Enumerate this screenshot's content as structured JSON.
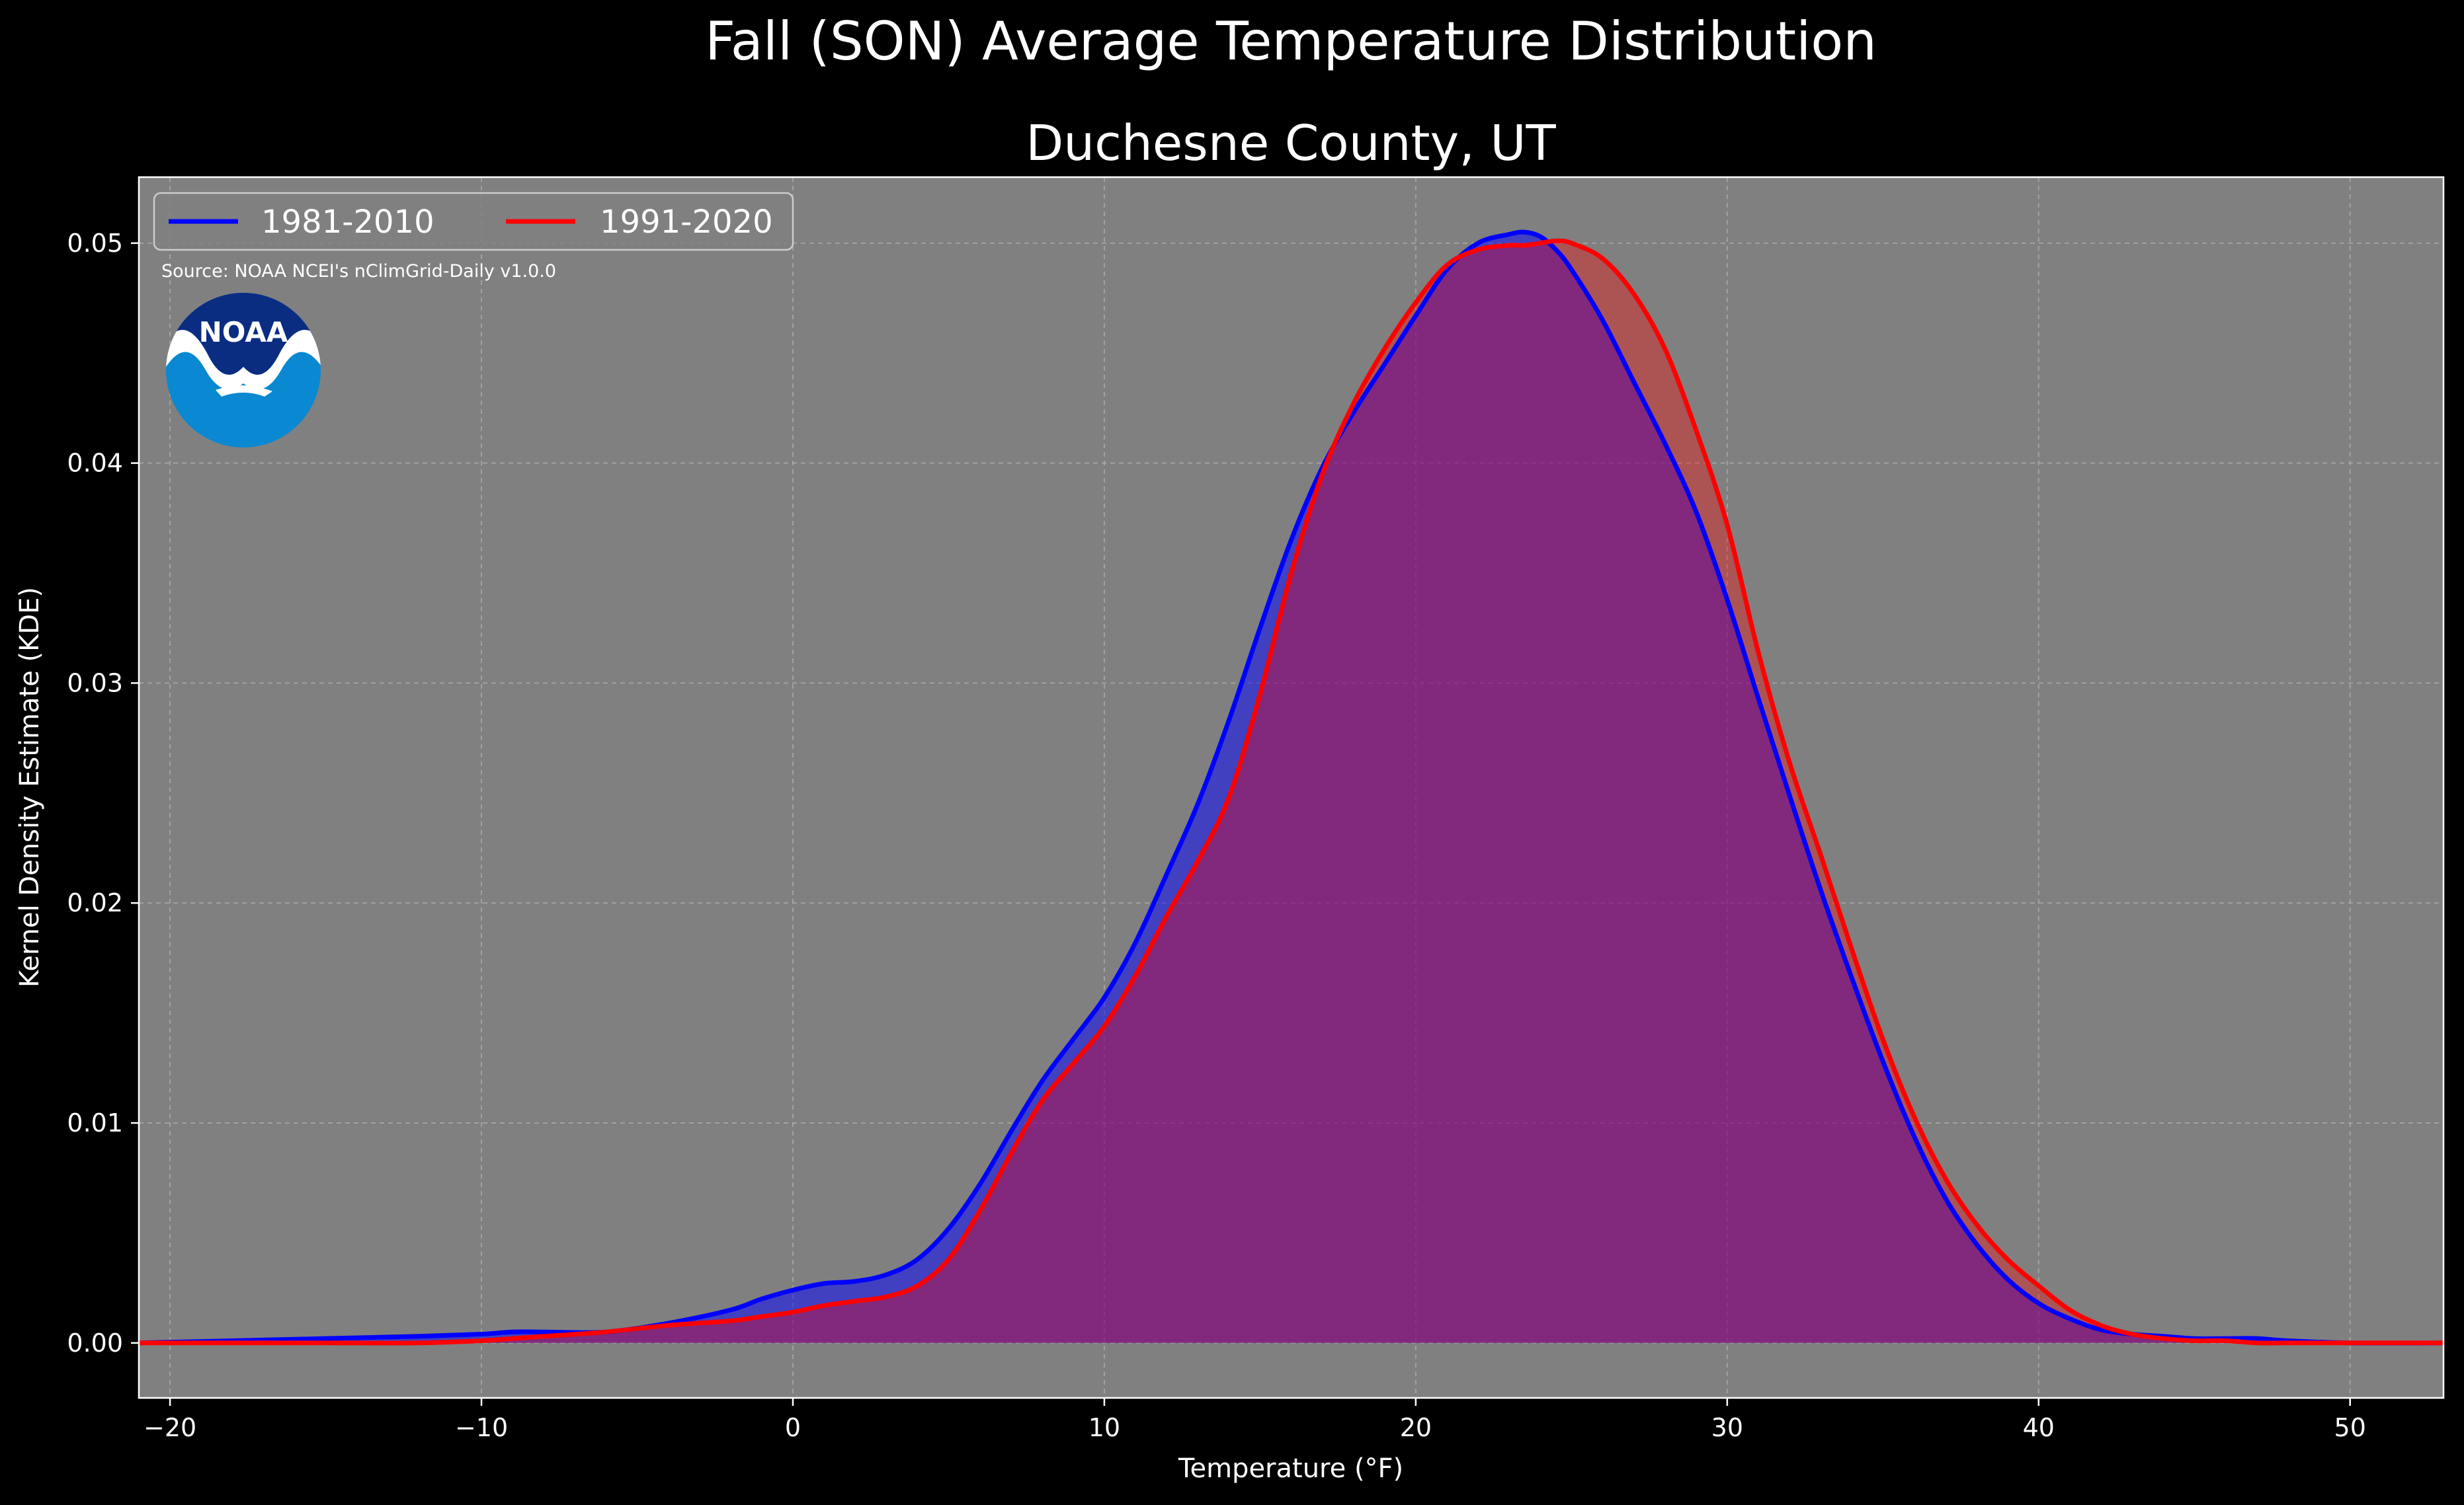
{
  "chart_data": {
    "type": "area",
    "suptitle": "Fall (SON) Average Temperature Distribution",
    "title": "Duchesne County, UT",
    "xlabel": "Temperature ($^\\circ$F)",
    "xlabel_display": "Temperature (°F)",
    "ylabel": "Kernel Density Estimate (KDE)",
    "xlim": [
      -21,
      53
    ],
    "ylim": [
      -0.0025,
      0.053
    ],
    "xticks": [
      -20,
      -10,
      0,
      10,
      20,
      30,
      40,
      50
    ],
    "xtick_labels": [
      "−20",
      "−10",
      "0",
      "10",
      "20",
      "30",
      "40",
      "50"
    ],
    "yticks": [
      0.0,
      0.01,
      0.02,
      0.03,
      0.04,
      0.05
    ],
    "ytick_labels": [
      "0.00",
      "0.01",
      "0.02",
      "0.03",
      "0.04",
      "0.05"
    ],
    "grid": true,
    "legend_position": "top-left",
    "source_note": "Source: NOAA NCEI's nClimGrid-Daily v1.0.0",
    "logo_text": "NOAA",
    "background": "#808080",
    "x": [
      -21,
      -18,
      -15,
      -12,
      -10,
      -9,
      -8,
      -6,
      -4,
      -2,
      -1,
      0,
      1,
      2,
      3,
      4,
      5,
      6,
      7,
      8,
      9,
      10,
      11,
      12,
      13,
      14,
      15,
      16,
      17,
      18,
      19,
      20,
      21,
      22,
      23,
      23.5,
      24,
      24.5,
      25,
      26,
      27,
      28,
      29,
      30,
      31,
      32,
      33,
      34,
      35,
      36,
      37,
      38,
      39,
      40,
      41,
      42,
      43,
      44,
      45,
      46,
      47,
      48,
      50,
      53
    ],
    "series": [
      {
        "name": "1981-2010",
        "color": "#0000ff",
        "fill": "rgba(0,0,255,0.5)",
        "values": [
          0.0,
          0.0001,
          0.0002,
          0.0003,
          0.0004,
          0.0005,
          0.0005,
          0.0005,
          0.0009,
          0.0015,
          0.002,
          0.0024,
          0.0027,
          0.0028,
          0.0031,
          0.0038,
          0.0052,
          0.0072,
          0.0096,
          0.0119,
          0.0138,
          0.0157,
          0.0182,
          0.0213,
          0.0245,
          0.0283,
          0.0325,
          0.0365,
          0.0398,
          0.0423,
          0.0445,
          0.0467,
          0.0488,
          0.05,
          0.0504,
          0.0505,
          0.0503,
          0.0497,
          0.0488,
          0.0465,
          0.0437,
          0.0409,
          0.0378,
          0.0338,
          0.0293,
          0.0249,
          0.0206,
          0.0166,
          0.0128,
          0.0094,
          0.0066,
          0.0045,
          0.0029,
          0.0018,
          0.0011,
          0.0006,
          0.0004,
          0.0003,
          0.0002,
          0.0002,
          0.0002,
          0.0001,
          0.0,
          0.0
        ]
      },
      {
        "name": "1991-2020",
        "color": "#ff0000",
        "fill": "rgba(255,0,0,0.35)",
        "values": [
          0.0,
          0.0,
          0.0,
          0.0,
          0.0001,
          0.0002,
          0.0003,
          0.0005,
          0.0008,
          0.001,
          0.0012,
          0.0014,
          0.0017,
          0.0019,
          0.0021,
          0.0026,
          0.0038,
          0.006,
          0.0086,
          0.011,
          0.0127,
          0.0144,
          0.0167,
          0.0194,
          0.0219,
          0.0248,
          0.0295,
          0.035,
          0.0395,
          0.0427,
          0.0452,
          0.0473,
          0.049,
          0.0497,
          0.0499,
          0.0499,
          0.05,
          0.0501,
          0.05,
          0.0493,
          0.0477,
          0.0452,
          0.0415,
          0.0372,
          0.0314,
          0.0264,
          0.0222,
          0.0179,
          0.0138,
          0.0103,
          0.0075,
          0.0054,
          0.0038,
          0.0026,
          0.0015,
          0.0008,
          0.0004,
          0.0002,
          0.0001,
          0.0001,
          0.0,
          0.0,
          0.0,
          0.0
        ]
      }
    ]
  }
}
